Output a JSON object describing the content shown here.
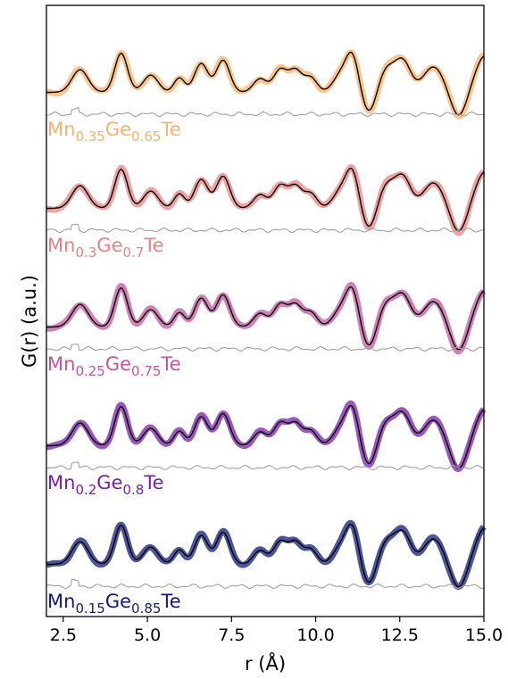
{
  "chart_data": {
    "type": "line",
    "xlabel": "r (Å)",
    "ylabel": "G(r) (a.u.)",
    "xlim": [
      2.0,
      15.0
    ],
    "xticks": [
      "2.5",
      "5.0",
      "7.5",
      "10.0",
      "12.5",
      "15.0"
    ],
    "peaks": [
      {
        "r": 3.0,
        "h": 0.55,
        "w": 0.24
      },
      {
        "r": 4.22,
        "h": 0.95,
        "w": 0.19
      },
      {
        "r": 5.1,
        "h": 0.42,
        "w": 0.22
      },
      {
        "r": 5.95,
        "h": 0.35,
        "w": 0.16
      },
      {
        "r": 6.6,
        "h": 0.7,
        "w": 0.2
      },
      {
        "r": 7.25,
        "h": 0.78,
        "w": 0.2
      },
      {
        "r": 8.35,
        "h": 0.33,
        "w": 0.2
      },
      {
        "r": 8.95,
        "h": 0.55,
        "w": 0.2
      },
      {
        "r": 9.4,
        "h": 0.52,
        "w": 0.19
      },
      {
        "r": 9.85,
        "h": 0.36,
        "w": 0.19
      },
      {
        "r": 10.75,
        "h": 0.42,
        "w": 0.23
      },
      {
        "r": 11.1,
        "h": 0.85,
        "w": 0.19
      },
      {
        "r": 12.1,
        "h": 0.58,
        "w": 0.26
      },
      {
        "r": 12.6,
        "h": 0.72,
        "w": 0.23
      },
      {
        "r": 13.5,
        "h": 0.62,
        "w": 0.3
      },
      {
        "r": 15.05,
        "h": 0.9,
        "w": 0.3
      }
    ],
    "troughs": [
      {
        "r": 11.6,
        "h": -0.55,
        "w": 0.22
      },
      {
        "r": 14.25,
        "h": -0.6,
        "w": 0.23
      }
    ],
    "series": [
      {
        "name": "Mn0.35Ge0.65Te",
        "label": {
          "a": "Mn",
          "b": "0.35",
          "c": "Ge",
          "d": "0.65",
          "e": "Te"
        },
        "color": "#f7b36b"
      },
      {
        "name": "Mn0.3Ge0.7Te",
        "label": {
          "a": "Mn",
          "b": "0.3",
          "c": "Ge",
          "d": "0.7",
          "e": "Te"
        },
        "color": "#e68481"
      },
      {
        "name": "Mn0.25Ge0.75Te",
        "label": {
          "a": "Mn",
          "b": "0.25",
          "c": "Ge",
          "d": "0.75",
          "e": "Te"
        },
        "color": "#c0579f"
      },
      {
        "name": "Mn0.2Ge0.8Te",
        "label": {
          "a": "Mn",
          "b": "0.2",
          "c": "Ge",
          "d": "0.8",
          "e": "Te"
        },
        "color": "#7a1fa8"
      },
      {
        "name": "Mn0.15Ge0.85Te",
        "label": {
          "a": "Mn",
          "b": "0.15",
          "c": "Ge",
          "d": "0.85",
          "e": "Te"
        },
        "color": "#121c78"
      }
    ],
    "fit_color": "#000000",
    "difference_color": "#a0a0a0",
    "grid": false,
    "legend": "none"
  }
}
